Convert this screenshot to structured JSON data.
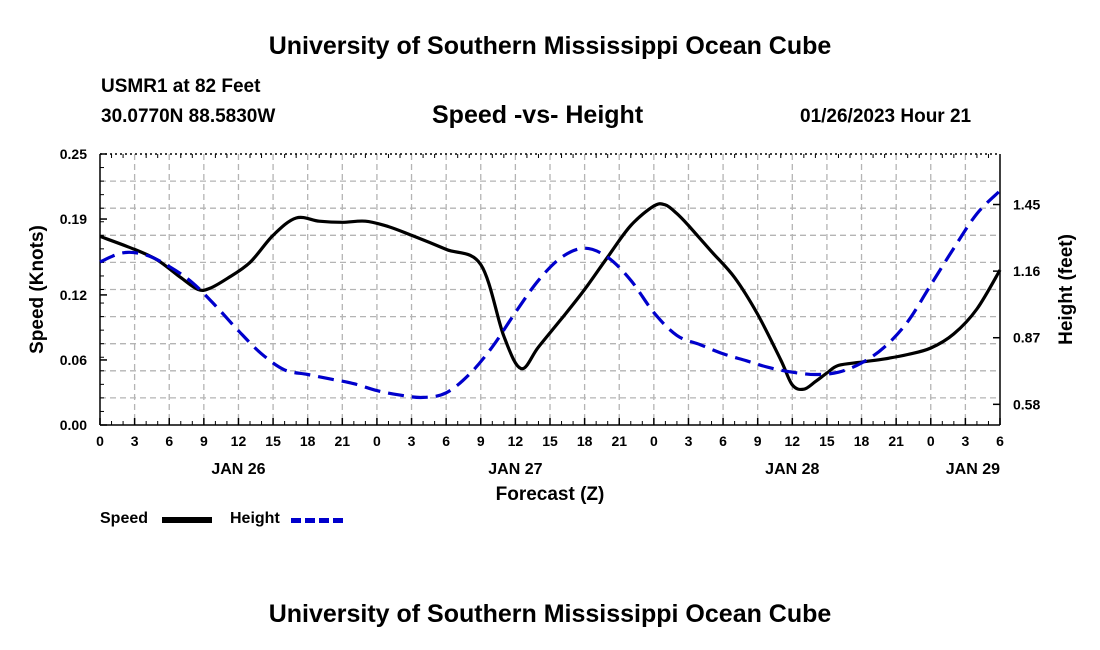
{
  "header": {
    "title": "University of Southern Mississippi Ocean Cube",
    "station": "USMR1 at 82 Feet",
    "coords": "30.0770N  88.5830W",
    "subtitle": "Speed -vs- Height",
    "datetime": "01/26/2023 Hour 21"
  },
  "footer": {
    "title": "University of Southern Mississippi Ocean Cube"
  },
  "legend": {
    "speed": "Speed",
    "height": "Height"
  },
  "colors": {
    "speed": "#000000",
    "height": "#0000cc",
    "grid": "#b4b4b4"
  },
  "chart_data": {
    "type": "line",
    "title": "Speed -vs- Height",
    "xlabel": "Forecast (Z)",
    "ylabel": "Speed (Knots)",
    "y2label": "Height (feet)",
    "x_hours_from_start": [
      0,
      78
    ],
    "x_tick_labels": [
      "0",
      "3",
      "6",
      "9",
      "12",
      "15",
      "18",
      "21",
      "0",
      "3",
      "6",
      "9",
      "12",
      "15",
      "18",
      "21",
      "0",
      "3",
      "6",
      "9",
      "12",
      "15",
      "18",
      "21",
      "0",
      "3",
      "6"
    ],
    "date_labels": [
      {
        "hour": 12,
        "label": "JAN 26"
      },
      {
        "hour": 36,
        "label": "JAN 27"
      },
      {
        "hour": 60,
        "label": "JAN 28"
      },
      {
        "hour": 78,
        "label": "JAN 29"
      }
    ],
    "ylim": [
      0,
      0.25
    ],
    "y_ticks": [
      0.0,
      0.06,
      0.12,
      0.19,
      0.25
    ],
    "y_tick_labels": [
      "0.00",
      "0.06",
      "0.12",
      "0.19",
      "0.25"
    ],
    "y2lim": [
      0.49,
      1.67
    ],
    "y2_ticks": [
      0.58,
      0.87,
      1.16,
      1.45
    ],
    "y2_tick_labels": [
      "0.58",
      "0.87",
      "1.16",
      "1.45"
    ],
    "series": [
      {
        "name": "Speed",
        "axis": "left",
        "style": "solid",
        "x": [
          0,
          3,
          5,
          7,
          8.5,
          9.5,
          11,
          13,
          15,
          17,
          19,
          21,
          23,
          25,
          27,
          30,
          33,
          35,
          36.5,
          38,
          40,
          42,
          44,
          46,
          48,
          49,
          50,
          51,
          53,
          55,
          57,
          59,
          60,
          61,
          62,
          63,
          64,
          66,
          68,
          70,
          72,
          74,
          76,
          78
        ],
        "values": [
          0.174,
          0.162,
          0.152,
          0.136,
          0.125,
          0.126,
          0.135,
          0.15,
          0.175,
          0.191,
          0.188,
          0.187,
          0.188,
          0.183,
          0.175,
          0.162,
          0.148,
          0.082,
          0.052,
          0.072,
          0.098,
          0.125,
          0.155,
          0.184,
          0.202,
          0.203,
          0.195,
          0.184,
          0.16,
          0.136,
          0.102,
          0.06,
          0.037,
          0.033,
          0.04,
          0.048,
          0.055,
          0.058,
          0.061,
          0.065,
          0.071,
          0.084,
          0.107,
          0.143
        ]
      },
      {
        "name": "Height",
        "axis": "right",
        "style": "dashed",
        "x": [
          0,
          2,
          4,
          6,
          8,
          10,
          12,
          14,
          16,
          18,
          20,
          22,
          24,
          26,
          28,
          30,
          32,
          34,
          36,
          38,
          40,
          42,
          44,
          46,
          48,
          50,
          52,
          54,
          56,
          58,
          60,
          62,
          64,
          66,
          68,
          70,
          72,
          74,
          76,
          78
        ],
        "values": [
          1.2,
          1.24,
          1.23,
          1.18,
          1.11,
          1.01,
          0.9,
          0.8,
          0.73,
          0.71,
          0.69,
          0.67,
          0.64,
          0.62,
          0.61,
          0.63,
          0.71,
          0.83,
          0.98,
          1.12,
          1.22,
          1.26,
          1.22,
          1.12,
          0.98,
          0.88,
          0.84,
          0.8,
          0.77,
          0.74,
          0.72,
          0.71,
          0.72,
          0.76,
          0.83,
          0.94,
          1.1,
          1.26,
          1.41,
          1.51
        ]
      }
    ]
  }
}
